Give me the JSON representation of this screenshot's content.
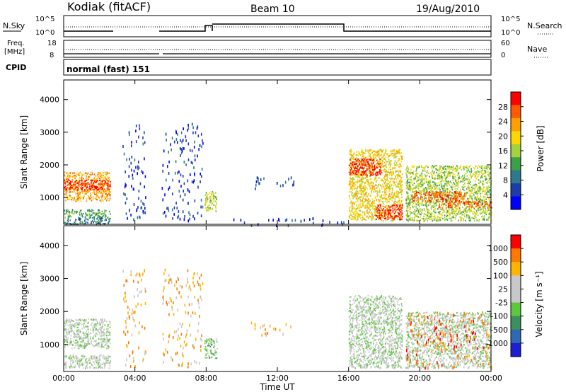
{
  "header": {
    "station": "Kodiak (fitACF)",
    "beam": "Beam 10",
    "date": "19/Aug/2010"
  },
  "cpid": {
    "label": "CPID",
    "mode": "normal (fast) 151"
  },
  "panel_nsky": {
    "left_label": "N.Sky",
    "right_label": "N.Search",
    "left_ticks": [
      "10^5",
      "10^0"
    ],
    "right_ticks": [
      "10^5",
      "10^0"
    ]
  },
  "panel_freq": {
    "left_label": "Freq.",
    "left_unit": "[MHz]",
    "right_label": "Nave",
    "left_ticks": [
      "18",
      "8"
    ],
    "right_ticks": [
      "60",
      "0"
    ]
  },
  "chart_data": [
    {
      "type": "heatmap",
      "name_ref": "power",
      "ylabel": "Slant Range [km]",
      "yticks": [
        1000,
        2000,
        3000,
        4000
      ],
      "ylim": [
        180,
        4600
      ],
      "xlim": [
        0,
        24
      ],
      "colorbar": {
        "label": "Power [dB]",
        "ticks": [
          "28",
          "24",
          "20",
          "16",
          "12",
          "8",
          "4"
        ],
        "colors": [
          "#0000ff",
          "#1e3ca8",
          "#2e7a8c",
          "#3ca04a",
          "#a4d23c",
          "#ffd700",
          "#ff9f00",
          "#ff5a00",
          "#ff0000"
        ]
      },
      "regions": [
        {
          "t": [
            0.0,
            2.6
          ],
          "r": [
            900,
            1800
          ],
          "level": 6
        },
        {
          "t": [
            0.0,
            2.6
          ],
          "r": [
            1250,
            1550
          ],
          "level": 8
        },
        {
          "t": [
            0.0,
            2.6
          ],
          "r": [
            400,
            650
          ],
          "level": 3
        },
        {
          "t": [
            0.0,
            2.6
          ],
          "r": [
            200,
            400
          ],
          "level": 2
        },
        {
          "t": [
            3.3,
            4.6
          ],
          "r": [
            300,
            3300
          ],
          "level": 1,
          "sparse": true
        },
        {
          "t": [
            5.5,
            7.8
          ],
          "r": [
            300,
            3300
          ],
          "level": 1,
          "sparse": true
        },
        {
          "t": [
            7.9,
            8.6
          ],
          "r": [
            600,
            1200
          ],
          "level": 4
        },
        {
          "t": [
            10.5,
            13.0
          ],
          "r": [
            1300,
            1700
          ],
          "level": 1,
          "sparse": true
        },
        {
          "t": [
            9.0,
            15.8
          ],
          "r": [
            180,
            400
          ],
          "level": 1,
          "sparse": true
        },
        {
          "t": [
            16.0,
            19.0
          ],
          "r": [
            300,
            2500
          ],
          "level": 5
        },
        {
          "t": [
            16.0,
            17.8
          ],
          "r": [
            1700,
            2200
          ],
          "level": 8
        },
        {
          "t": [
            17.5,
            19.0
          ],
          "r": [
            350,
            800
          ],
          "level": 8
        },
        {
          "t": [
            19.2,
            24.0
          ],
          "r": [
            300,
            2000
          ],
          "level": 4
        },
        {
          "t": [
            19.5,
            22.5
          ],
          "r": [
            900,
            1200
          ],
          "level": 7
        },
        {
          "t": [
            21.0,
            24.0
          ],
          "r": [
            700,
            900
          ],
          "level": 7
        }
      ]
    },
    {
      "type": "heatmap",
      "name_ref": "velocity",
      "ylabel": "Slant Range [km]",
      "yticks": [
        1000,
        2000,
        3000,
        4000
      ],
      "ylim": [
        180,
        4600
      ],
      "xlim": [
        0,
        24
      ],
      "xticks": [
        "00:00",
        "04:00",
        "08:00",
        "12:00",
        "16:00",
        "20:00",
        "00:00"
      ],
      "xlabel": "Time UT",
      "colorbar": {
        "label": "Velocity [m s⁻¹]",
        "ticks": [
          "1000",
          "500",
          "100",
          "25",
          "-25",
          "-100",
          "-500",
          "-1000"
        ],
        "colors": [
          "#1e1ed2",
          "#2e6ab4",
          "#3c9060",
          "#5cc83c",
          "#c8c8c8",
          "#c8c8c8",
          "#ffb400",
          "#ff7800",
          "#ff0000"
        ]
      },
      "regions": [
        {
          "t": [
            0.0,
            2.6
          ],
          "r": [
            900,
            1800
          ],
          "level": 4
        },
        {
          "t": [
            0.0,
            2.6
          ],
          "r": [
            300,
            700
          ],
          "level": 4
        },
        {
          "t": [
            3.3,
            4.6
          ],
          "r": [
            300,
            3300
          ],
          "level": 6,
          "sparse": true
        },
        {
          "t": [
            5.5,
            7.8
          ],
          "r": [
            300,
            3300
          ],
          "level": 6,
          "sparse": true
        },
        {
          "t": [
            7.9,
            8.6
          ],
          "r": [
            600,
            1200
          ],
          "level": 3
        },
        {
          "t": [
            10.5,
            13.0
          ],
          "r": [
            1300,
            1700
          ],
          "level": 6,
          "sparse": true
        },
        {
          "t": [
            16.0,
            19.0
          ],
          "r": [
            300,
            2500
          ],
          "level": 4
        },
        {
          "t": [
            19.2,
            24.0
          ],
          "r": [
            300,
            2000
          ],
          "level": 4
        },
        {
          "t": [
            19.2,
            24.0
          ],
          "r": [
            300,
            2000
          ],
          "level": 7,
          "sparse": true
        }
      ]
    }
  ]
}
